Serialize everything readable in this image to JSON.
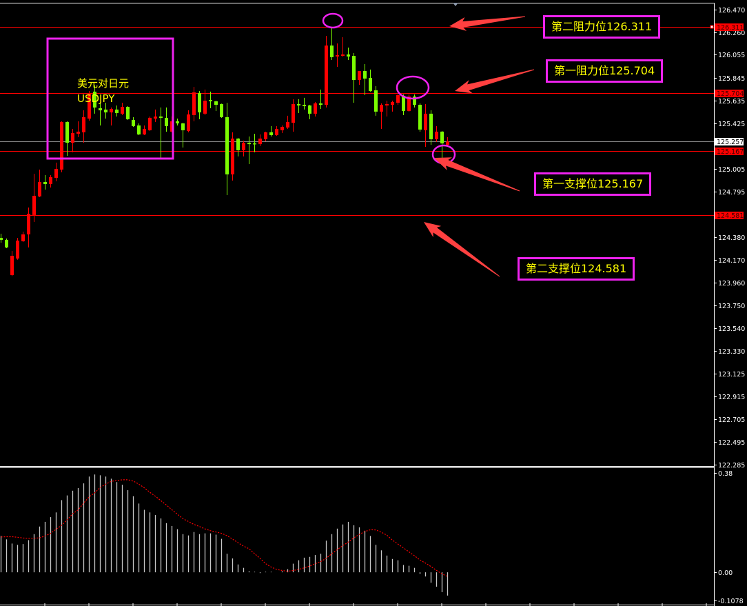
{
  "chart_data": [
    {
      "type": "candlestick",
      "symbol_title": "美元对日元",
      "symbol": "USDJPY",
      "y_range": [
        122.285,
        126.47
      ],
      "y_ticks": [
        "126.470",
        "126.260",
        "126.055",
        "125.845",
        "125.635",
        "125.425",
        "125.005",
        "124.795",
        "124.380",
        "124.170",
        "123.960",
        "123.750",
        "123.540",
        "123.330",
        "123.125",
        "122.915",
        "122.705",
        "122.495",
        "122.285"
      ],
      "grid": false,
      "colors": {
        "up": "#ff0000",
        "down": "#7cfc00",
        "background": "#000000",
        "annotation": "#ee22ee",
        "arrow": "#ff4040",
        "text": "#ffff00"
      },
      "ohlc_fields": [
        "open",
        "high",
        "low",
        "close"
      ],
      "ohlc": [
        [
          124.371,
          124.409,
          124.327,
          124.352
        ],
        [
          124.352,
          124.365,
          124.276,
          124.283
        ],
        [
          124.029,
          124.251,
          124.02,
          124.206
        ],
        [
          124.181,
          124.371,
          124.17,
          124.346
        ],
        [
          124.34,
          124.428,
          124.333,
          124.403
        ],
        [
          124.403,
          124.65,
          124.283,
          124.593
        ],
        [
          124.581,
          124.961,
          124.517,
          124.758
        ],
        [
          124.752,
          124.999,
          124.745,
          124.885
        ],
        [
          124.885,
          124.948,
          124.815,
          124.866
        ],
        [
          124.866,
          124.948,
          124.834,
          124.929
        ],
        [
          124.923,
          125.063,
          124.891,
          125.005
        ],
        [
          124.999,
          125.443,
          124.974,
          125.437
        ],
        [
          125.437,
          125.443,
          125.126,
          125.246
        ],
        [
          125.246,
          125.373,
          125.158,
          125.335
        ],
        [
          125.329,
          125.443,
          125.297,
          125.348
        ],
        [
          125.342,
          125.544,
          125.246,
          125.481
        ],
        [
          125.468,
          125.722,
          125.449,
          125.703
        ],
        [
          125.716,
          125.773,
          125.513,
          125.57
        ],
        [
          125.563,
          125.608,
          125.405,
          125.544
        ],
        [
          125.551,
          125.614,
          125.468,
          125.525
        ],
        [
          125.525,
          125.57,
          125.405,
          125.557
        ],
        [
          125.551,
          125.589,
          125.487,
          125.519
        ],
        [
          125.513,
          125.614,
          125.5,
          125.576
        ],
        [
          125.576,
          125.582,
          125.456,
          125.462
        ],
        [
          125.456,
          125.481,
          125.392,
          125.399
        ],
        [
          125.405,
          125.424,
          125.316,
          125.322
        ],
        [
          125.322,
          125.405,
          125.316,
          125.373
        ],
        [
          125.361,
          125.487,
          125.354,
          125.475
        ],
        [
          125.468,
          125.551,
          125.437,
          125.487
        ],
        [
          125.487,
          125.57,
          125.101,
          125.475
        ],
        [
          125.475,
          125.57,
          125.348,
          125.399
        ],
        [
          125.348,
          125.487,
          125.34,
          125.443
        ],
        [
          125.443,
          125.468,
          125.405,
          125.424
        ],
        [
          125.424,
          125.43,
          125.202,
          125.361
        ],
        [
          125.354,
          125.544,
          125.342,
          125.506
        ],
        [
          125.5,
          125.76,
          125.443,
          125.709
        ],
        [
          125.703,
          125.722,
          125.462,
          125.525
        ],
        [
          125.513,
          125.735,
          125.5,
          125.633
        ],
        [
          125.64,
          125.716,
          125.563,
          125.627
        ],
        [
          125.627,
          125.633,
          125.538,
          125.595
        ],
        [
          125.601,
          125.605,
          125.475,
          125.481
        ],
        [
          125.481,
          125.614,
          124.764,
          124.955
        ],
        [
          124.955,
          125.342,
          124.898,
          125.284
        ],
        [
          125.284,
          125.29,
          125.12,
          125.177
        ],
        [
          125.177,
          125.265,
          125.12,
          125.246
        ],
        [
          125.246,
          125.303,
          125.05,
          125.233
        ],
        [
          125.24,
          125.329,
          125.158,
          125.233
        ],
        [
          125.233,
          125.322,
          125.215,
          125.284
        ],
        [
          125.278,
          125.348,
          125.259,
          125.342
        ],
        [
          125.342,
          125.399,
          125.303,
          125.316
        ],
        [
          125.316,
          125.399,
          125.31,
          125.373
        ],
        [
          125.361,
          125.405,
          125.335,
          125.392
        ],
        [
          125.386,
          125.494,
          125.373,
          125.437
        ],
        [
          125.43,
          125.646,
          125.348,
          125.602
        ],
        [
          125.602,
          125.646,
          125.519,
          125.589
        ],
        [
          125.595,
          125.659,
          125.551,
          125.582
        ],
        [
          125.589,
          125.595,
          125.462,
          125.513
        ],
        [
          125.513,
          125.621,
          125.487,
          125.608
        ],
        [
          125.608,
          125.735,
          125.557,
          125.595
        ],
        [
          125.595,
          126.229,
          125.57,
          126.14
        ],
        [
          126.14,
          126.305,
          126.007,
          126.033
        ],
        [
          126.039,
          126.159,
          125.944,
          126.052
        ],
        [
          126.045,
          126.217,
          126.039,
          126.058
        ],
        [
          126.058,
          126.121,
          126.007,
          126.039
        ],
        [
          126.045,
          126.071,
          125.614,
          125.823
        ],
        [
          125.823,
          125.901,
          125.779,
          125.906
        ],
        [
          125.906,
          125.969,
          125.684,
          125.836
        ],
        [
          125.842,
          125.919,
          125.716,
          125.722
        ],
        [
          125.728,
          125.766,
          125.494,
          125.532
        ],
        [
          125.532,
          125.608,
          125.373,
          125.595
        ],
        [
          125.589,
          125.633,
          125.487,
          125.602
        ],
        [
          125.595,
          125.633,
          125.532,
          125.621
        ],
        [
          125.614,
          125.69,
          125.595,
          125.684
        ],
        [
          125.678,
          125.69,
          125.5,
          125.538
        ],
        [
          125.538,
          125.69,
          125.532,
          125.671
        ],
        [
          125.671,
          125.69,
          125.57,
          125.595
        ],
        [
          125.595,
          125.608,
          125.348,
          125.367
        ],
        [
          125.361,
          125.602,
          125.208,
          125.513
        ],
        [
          125.513,
          125.544,
          125.227,
          125.278
        ],
        [
          125.278,
          125.399,
          125.253,
          125.348
        ],
        [
          125.348,
          125.354,
          125.101,
          125.24
        ],
        [
          125.227,
          125.297,
          125.215,
          125.257
        ]
      ],
      "current_price": {
        "value": "125.257",
        "color": "#ffffff"
      },
      "levels": [
        {
          "price": "126.311",
          "color": "#ff0000",
          "annotation": "第二阻力位126.311"
        },
        {
          "price": "125.704",
          "color": "#ff0000",
          "annotation": "第一阻力位125.704"
        },
        {
          "price": "125.167",
          "color": "#ff0000",
          "annotation": "第一支撑位125.167"
        },
        {
          "price": "124.581",
          "color": "#ff0000",
          "annotation": "第二支撑位124.581"
        }
      ]
    },
    {
      "type": "bar",
      "indicator": "macd",
      "y_range": [
        -0.1078,
        0.38
      ],
      "y_ticks": [
        "0.38",
        "0.00",
        "-0.1078"
      ],
      "colors": {
        "histogram": "#c8c8c8",
        "signal": "#ff0000"
      },
      "histogram": [
        0.139,
        0.126,
        0.11,
        0.105,
        0.108,
        0.123,
        0.146,
        0.175,
        0.193,
        0.211,
        0.229,
        0.276,
        0.294,
        0.312,
        0.322,
        0.34,
        0.366,
        0.374,
        0.371,
        0.366,
        0.358,
        0.345,
        0.335,
        0.314,
        0.291,
        0.263,
        0.239,
        0.229,
        0.219,
        0.206,
        0.188,
        0.177,
        0.165,
        0.146,
        0.141,
        0.154,
        0.146,
        0.149,
        0.149,
        0.144,
        0.128,
        0.071,
        0.053,
        0.03,
        0.017,
        0.004,
        0.002,
        -0.003,
        0.002,
        0.002,
        0.0,
        0.004,
        0.012,
        0.033,
        0.046,
        0.056,
        0.059,
        0.066,
        0.071,
        0.121,
        0.146,
        0.167,
        0.183,
        0.193,
        0.18,
        0.172,
        0.159,
        0.139,
        0.105,
        0.084,
        0.064,
        0.051,
        0.046,
        0.028,
        0.025,
        0.017,
        -0.006,
        -0.016,
        -0.04,
        -0.055,
        -0.076,
        -0.089
      ],
      "signal": [
        0.135,
        0.136,
        0.136,
        0.134,
        0.131,
        0.13,
        0.13,
        0.132,
        0.139,
        0.149,
        0.165,
        0.18,
        0.201,
        0.224,
        0.239,
        0.265,
        0.289,
        0.304,
        0.325,
        0.337,
        0.348,
        0.351,
        0.354,
        0.354,
        0.349,
        0.337,
        0.323,
        0.306,
        0.291,
        0.274,
        0.257,
        0.239,
        0.222,
        0.205,
        0.194,
        0.183,
        0.175,
        0.166,
        0.159,
        0.154,
        0.149,
        0.14,
        0.127,
        0.113,
        0.1,
        0.09,
        0.071,
        0.053,
        0.033,
        0.02,
        0.011,
        0.007,
        0.004,
        0.007,
        0.011,
        0.017,
        0.024,
        0.033,
        0.041,
        0.054,
        0.071,
        0.087,
        0.102,
        0.116,
        0.132,
        0.145,
        0.156,
        0.163,
        0.162,
        0.153,
        0.142,
        0.123,
        0.108,
        0.093,
        0.078,
        0.063,
        0.047,
        0.035,
        0.022,
        0.007,
        -0.006,
        -0.016
      ]
    }
  ]
}
